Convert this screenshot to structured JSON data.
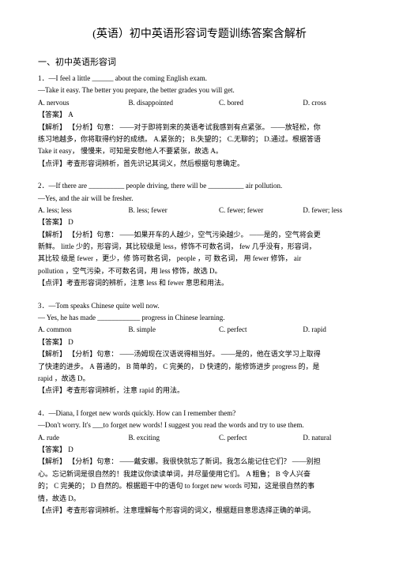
{
  "title": "(英语）初中英语形容词专题训练答案含解析",
  "section_header": "一、初中英语形容词",
  "q1": {
    "num": "1．",
    "line1": "—I feel a little ______ about the coming English exam.",
    "line2": "—Take it easy. The better you prepare, the better grades you will get.",
    "opts": {
      "a": "A. nervous",
      "b": "B. disappointed",
      "c": "C. bored",
      "d": "D. cross"
    },
    "answer": "【答案】  A",
    "analysis1_label": "【解析】 【分析】",
    "analysis1_text": "句意：   ——对于即将到来的英语考试我感到有点紧张。         ——放轻松，你",
    "analysis2": "练习地越多，你将取得约好的成绩。         A.紧张的；   B.失望的；   C.无聊的；   D.通过。根据答语",
    "analysis3": "Take it easy，  慢慢来，可知是安慰他人不要紧张，故选       A。",
    "comment": "【点评】考查形容词辨析，首先识记其词义，然后根据句意确定。"
  },
  "q2": {
    "num": "2．",
    "line1": "—If there are __________ people driving, there will be __________ air pollution.",
    "line2": "—Yes, and the air will be fresher.",
    "opts": {
      "a": "A. less; less",
      "b": "B. less; fewer",
      "c": "C. fewer; fewer",
      "d": "D. fewer; less"
    },
    "answer": "【答案】  D",
    "analysis1_label": "【解析】 【分析】",
    "analysis1_text": "句意：   ——如果开车的人越少，空气污染越少。          ——是的，空气将会更",
    "analysis2": "新鲜。  little 少的，形容词，其比较级是      less，修饰不可数名词，    few 几乎没有，形容词，",
    "analysis3": "其比较  级是  fewer ，更少，修  饰可数名词，     people ，可 数名词，  用  fewer 修饰，  air",
    "analysis4": "pollution ，空气污染，不可数名词，用     less 修饰，故选   D。",
    "comment": "【点评】考查形容词的辨析，注意      less 和  fewer 意思和用法。"
  },
  "q3": {
    "num": "3．",
    "line1": "—Tom speaks Chinese quite well now.",
    "line2": "— Yes, he has made ____________ progress in Chinese learning.",
    "opts": {
      "a": "A. common",
      "b": "B. simple",
      "c": "C. perfect",
      "d": "D. rapid"
    },
    "answer": "【答案】  D",
    "analysis1_label": "【解析】 【分析】",
    "analysis1_text": "句意：   ——汤姆现在汉语说得相当好。         ——是的，他在语文学习上取得",
    "analysis2": "了快速的进步。    A 普通的，   B 简单的，   C 完美的，  D 快速的，能修饰进步     progress 的，是",
    "analysis3": "rapid ，故选  D。",
    "comment": "【点评】考查形容词辨析，注意      rapid 的用法。"
  },
  "q4": {
    "num": "4．",
    "line1": "—Diana, I forget new words quickly. How can I remember them?",
    "line2": "—Don't worry. It's ___to forget new words! I suggest you read the words and try to use them.",
    "opts": {
      "a": "A. rude",
      "b": "B. exciting",
      "c": "C. perfect",
      "d": "D. natural"
    },
    "answer": "【答案】  D",
    "analysis1_label": "【解析】 【分析】",
    "analysis1_text": "句意：   ——戴安娜。我很快就忘了新词。我怎么能记住它们？             ——别担",
    "analysis2": "心。忘记新词是很自然的！我建议你读读单词，并尽量使用它们。                A 粗鲁；  B 令人兴奋",
    "analysis3": "的；  C 完美的；   D 自然的。根据题干中的语句        to forget new words 可知，这是很自然的事",
    "analysis4": "情，故选  D。",
    "comment": "【点评】考查形容词辨析。注意理解每个形容词的词义，根据题目意思选择正确的单词。"
  }
}
